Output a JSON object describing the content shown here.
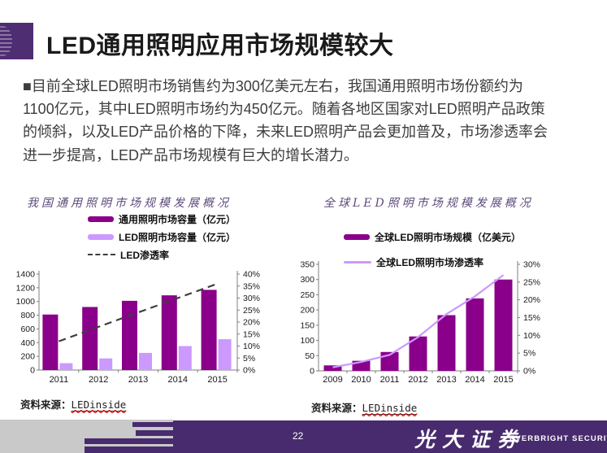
{
  "slide": {
    "title": "LED通用照明应用市场规模较大",
    "body_lines": [
      "■目前全球LED照明市场销售约为300亿美元左右，我国通用照明市场份额约为",
      "1100亿元，其中LED照明市场约为450亿元。随着各地区国家对LED照明产品政策",
      "的倾斜，以及LED产品价格的下降，未来LED照明产品会更加普及，市场渗透率会",
      "进一步提高，LED产品市场规模有巨大的增长潜力。"
    ],
    "page_number": "22",
    "brand_cn": "光大证券",
    "brand_en": "EVERBRIGHT SECURITIES"
  },
  "colors": {
    "accent_purple": "#4e2d72",
    "footer_purple": "#482b6e",
    "footer_gray": "#c9c9c9",
    "bar_dark": "#8a008a",
    "bar_light": "#cc99ff",
    "line_light": "#cc99ff",
    "dash_line": "#3f3f3f",
    "chart_title": "#5d4a7a"
  },
  "left_chart": {
    "title": "我国通用照明市场规模发展概况",
    "legend": [
      {
        "label": "通用照明市场容量（亿元）"
      },
      {
        "label": "LED照明市场容量（亿元）"
      },
      {
        "label": "LED渗透率"
      }
    ],
    "source_label": "资料来源：",
    "source_link": "LEDinside"
  },
  "right_chart": {
    "title": "全球LED照明市场规模发展概况",
    "legend": [
      {
        "label": "全球LED照明市场规模（亿美元）"
      },
      {
        "label": "全球LED照明市场渗透率"
      }
    ],
    "source_label": "资料来源：",
    "source_link": "LEDinside"
  },
  "chart_data": [
    {
      "type": "bar",
      "title": "我国通用照明市场规模发展概况",
      "categories": [
        "2011",
        "2012",
        "2013",
        "2014",
        "2015"
      ],
      "series": [
        {
          "name": "通用照明市场容量（亿元）",
          "type": "bar",
          "axis": "left",
          "values": [
            810,
            920,
            1010,
            1090,
            1170
          ]
        },
        {
          "name": "LED照明市场容量（亿元）",
          "type": "bar",
          "axis": "left",
          "values": [
            100,
            170,
            250,
            350,
            450
          ]
        },
        {
          "name": "LED渗透率",
          "type": "dashed-line",
          "axis": "right",
          "values": [
            12,
            18,
            24,
            30,
            36
          ]
        }
      ],
      "left_axis": {
        "min": 0,
        "max": 1400,
        "step": 200
      },
      "right_axis": {
        "min": 0,
        "max": 40,
        "step": 5,
        "suffix": "%"
      },
      "legend_position": "top",
      "grid": false
    },
    {
      "type": "bar",
      "title": "全球LED照明市场规模发展概况",
      "categories": [
        "2009",
        "2010",
        "2011",
        "2012",
        "2013",
        "2014",
        "2015"
      ],
      "series": [
        {
          "name": "全球LED照明市场规模（亿美元）",
          "type": "bar",
          "axis": "left",
          "values": [
            18,
            33,
            62,
            113,
            183,
            238,
            300
          ]
        },
        {
          "name": "全球LED照明市场渗透率",
          "type": "line",
          "axis": "right",
          "values": [
            1,
            2.5,
            4.5,
            9.5,
            16,
            21,
            27
          ]
        }
      ],
      "left_axis": {
        "min": 0,
        "max": 350,
        "step": 50
      },
      "right_axis": {
        "min": 0,
        "max": 30,
        "step": 5,
        "suffix": "%"
      },
      "legend_position": "top",
      "grid": false
    }
  ]
}
